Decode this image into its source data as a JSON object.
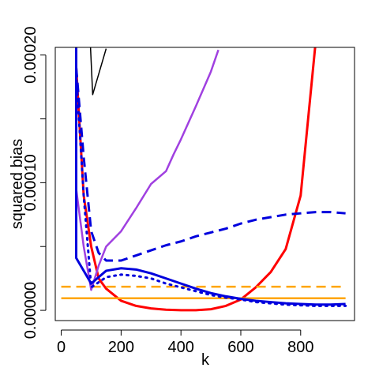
{
  "chart_data": {
    "type": "line",
    "title": "",
    "xlabel": "k",
    "ylabel": "squared bias",
    "xlim": [
      -20,
      980
    ],
    "ylim": [
      -8e-06,
      0.000206
    ],
    "xticks": [
      0,
      200,
      400,
      600,
      800
    ],
    "xtick_labels": [
      "0",
      "200",
      "400",
      "600",
      "800"
    ],
    "yticks": [
      0,
      5e-05,
      0.0001,
      0.00015,
      0.0002
    ],
    "ytick_labels": [
      "0.00000",
      "",
      "0.00010",
      "",
      "0.00020"
    ],
    "grid": false,
    "legend": "none",
    "series": [
      {
        "color": "#000000",
        "dash": "solid",
        "width": 1.5,
        "x": [
          95,
          105,
          150
        ],
        "y": [
          0.00022,
          0.000169,
          0.000205
        ]
      },
      {
        "color": "#ff0000",
        "dash": "solid",
        "width": 3,
        "x": [
          50,
          75,
          100,
          125,
          150,
          200,
          250,
          300,
          350,
          400,
          450,
          500,
          550,
          600,
          650,
          700,
          750,
          800,
          825,
          850
        ],
        "y": [
          0.00019,
          9e-05,
          5e-05,
          2.5e-05,
          1.7e-05,
          7.5e-06,
          3.5e-06,
          1.5e-06,
          5e-07,
          1e-07,
          1e-07,
          9e-07,
          3.5e-06,
          8.5e-06,
          1.8e-05,
          3e-05,
          4.8e-05,
          9e-05,
          0.00015,
          0.00021
        ]
      },
      {
        "color": "#a040e0",
        "dash": "solid",
        "width": 2.5,
        "x": [
          50,
          75,
          100,
          125,
          150,
          200,
          250,
          300,
          350,
          375,
          400,
          450,
          500,
          525
        ],
        "y": [
          9.5e-05,
          5e-05,
          1.6e-05,
          3.5e-05,
          5e-05,
          6.2e-05,
          8e-05,
          9.9e-05,
          0.000109,
          0.000122,
          0.000134,
          0.00016,
          0.000187,
          0.000204
        ]
      },
      {
        "color": "#ffa500",
        "dash": "solid",
        "width": 2.5,
        "x": [
          0,
          950
        ],
        "y": [
          9.5e-06,
          9.5e-06
        ]
      },
      {
        "color": "#ffa500",
        "dash": "dashed",
        "width": 2.5,
        "x": [
          0,
          950
        ],
        "y": [
          1.85e-05,
          1.85e-05
        ]
      },
      {
        "color": "#0000dd",
        "dash": "solid",
        "width": 3,
        "x": [
          50,
          50,
          100,
          150,
          200,
          250,
          300,
          350,
          400,
          450,
          500,
          550,
          600,
          650,
          700,
          750,
          800,
          850,
          900,
          950
        ],
        "y": [
          0.00021,
          4.1e-05,
          2.1e-05,
          3.1e-05,
          3.3e-05,
          3.2e-05,
          2.9e-05,
          2.5e-05,
          2.1e-05,
          1.7e-05,
          1.35e-05,
          1.1e-05,
          9e-06,
          7.5e-06,
          6.5e-06,
          5.5e-06,
          5e-06,
          4.5e-06,
          4.5e-06,
          5e-06
        ]
      },
      {
        "color": "#0000dd",
        "dash": "dashed",
        "width": 3,
        "x": [
          50,
          75,
          100,
          125,
          150,
          200,
          250,
          300,
          350,
          400,
          450,
          500,
          550,
          600,
          650,
          700,
          750,
          800,
          850,
          900,
          950
        ],
        "y": [
          0.00019,
          0.00012,
          6.2e-05,
          4.5e-05,
          3.9e-05,
          3.9e-05,
          4.3e-05,
          4.7e-05,
          5.1e-05,
          5.4e-05,
          5.8e-05,
          6.1e-05,
          6.4e-05,
          6.8e-05,
          7.1e-05,
          7.3e-05,
          7.5e-05,
          7.6e-05,
          7.7e-05,
          7.7e-05,
          7.6e-05
        ]
      },
      {
        "color": "#0000dd",
        "dash": "dotted",
        "width": 3,
        "x": [
          50,
          75,
          100,
          125,
          150,
          200,
          250,
          300,
          350,
          400,
          450,
          500,
          550,
          600,
          650,
          700,
          750,
          800,
          850,
          900,
          950
        ],
        "y": [
          0.000185,
          9e-05,
          1.8e-05,
          2.2e-05,
          2.6e-05,
          2.8e-05,
          2.7e-05,
          2.5e-05,
          2.1e-05,
          1.8e-05,
          1.5e-05,
          1.2e-05,
          1e-05,
          8.5e-06,
          6.5e-06,
          5.5e-06,
          4.5e-06,
          4e-06,
          3.5e-06,
          3.5e-06,
          3.5e-06
        ]
      }
    ]
  }
}
